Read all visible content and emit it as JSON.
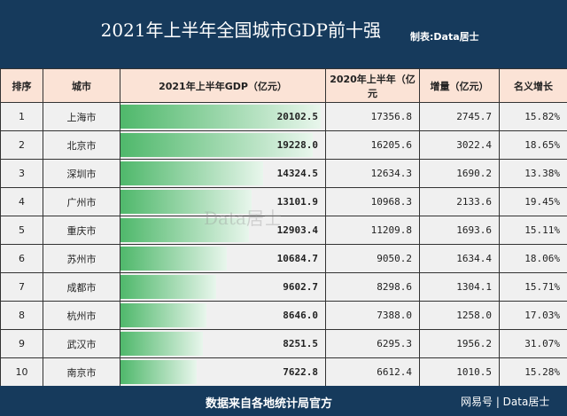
{
  "header": {
    "title": "2021年上半年全国城市GDP前十强",
    "maker": "制表:Data居士"
  },
  "footer": {
    "source": "数据来自各地统计局官方",
    "brand": "网易号 | Data居士"
  },
  "watermark": "Data居士",
  "colors": {
    "header_bg": "#163a5c",
    "column_header_bg": "#fbe3d6",
    "bar": "#4fb86b"
  },
  "chart_data": {
    "type": "table",
    "columns": [
      "排序",
      "城市",
      "2021年上半年GDP（亿元）",
      "2020年上半年（亿元",
      "增量（亿元）",
      "名义增长"
    ],
    "rows": [
      [
        "1",
        "上海市",
        "20102.5",
        "17356.8",
        "2745.7",
        "15.82%"
      ],
      [
        "2",
        "北京市",
        "19228.0",
        "16205.6",
        "3022.4",
        "18.65%"
      ],
      [
        "3",
        "深圳市",
        "14324.5",
        "12634.3",
        "1690.2",
        "13.38%"
      ],
      [
        "4",
        "广州市",
        "13101.9",
        "10968.3",
        "2133.6",
        "19.45%"
      ],
      [
        "5",
        "重庆市",
        "12903.4",
        "11209.8",
        "1693.6",
        "15.11%"
      ],
      [
        "6",
        "苏州市",
        "10684.7",
        "9050.2",
        "1634.4",
        "18.06%"
      ],
      [
        "7",
        "成都市",
        "9602.7",
        "8298.6",
        "1304.1",
        "15.71%"
      ],
      [
        "8",
        "杭州市",
        "8646.0",
        "7388.0",
        "1258.0",
        "17.03%"
      ],
      [
        "9",
        "武汉市",
        "8251.5",
        "6295.3",
        "1956.2",
        "31.07%"
      ],
      [
        "10",
        "南京市",
        "7622.8",
        "6612.4",
        "1010.5",
        "15.28%"
      ]
    ]
  }
}
